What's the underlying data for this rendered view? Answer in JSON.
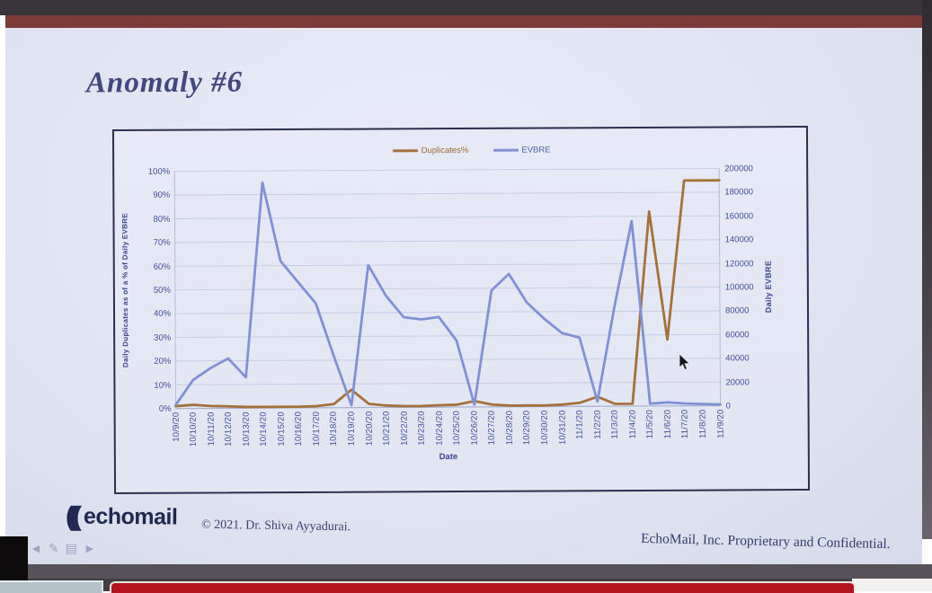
{
  "slide": {
    "title": "Anomaly #6",
    "copyright": "© 2021. Dr. Shiva Ayyadurai.",
    "confidential": "EchoMail, Inc. Proprietary and Confidential.",
    "logo": {
      "arcs": "(((",
      "text": "echomail"
    }
  },
  "icons": {
    "back": "◄",
    "pen": "✎",
    "slide_menu": "▤",
    "forward": "►",
    "mouse_cursor": "arrow-pointer"
  },
  "colors": {
    "accent_maroon": "#7c3b36",
    "banner_red": "#b3141f",
    "slide_background": "#e2e6f3",
    "title_navy": "#42477c",
    "duplicates_line": "#a5703a",
    "evbre_line": "#8191d6"
  },
  "chart_data": {
    "type": "line",
    "title": "",
    "xlabel": "Date",
    "ylabel_left": "Daily Duplicates as of a % of Daily EVBRE",
    "ylabel_right": "Daily EVBRE",
    "legend_position": "top-center",
    "grid": true,
    "x": [
      "10/9/20",
      "10/10/20",
      "10/11/20",
      "10/12/20",
      "10/13/20",
      "10/14/20",
      "10/15/20",
      "10/16/20",
      "10/17/20",
      "10/18/20",
      "10/19/20",
      "10/20/20",
      "10/21/20",
      "10/22/20",
      "10/23/20",
      "10/24/20",
      "10/25/20",
      "10/26/20",
      "10/27/20",
      "10/28/20",
      "10/29/20",
      "10/30/20",
      "10/31/20",
      "11/1/20",
      "11/2/20",
      "11/3/20",
      "11/4/20",
      "11/5/20",
      "11/6/20",
      "11/7/20",
      "11/8/20",
      "11/9/20"
    ],
    "left_axis": {
      "min": 0,
      "max": 100,
      "ticks_top_to_bottom": [
        "100%",
        "90%",
        "80%",
        "70%",
        "60%",
        "50%",
        "40%",
        "30%",
        "20%",
        "10%",
        "0%"
      ]
    },
    "right_axis": {
      "min": 0,
      "max": 200000,
      "ticks_top_to_bottom": [
        "200000",
        "180000",
        "160000",
        "140000",
        "120000",
        "100000",
        "80000",
        "60000",
        "40000",
        "20000",
        "0"
      ]
    },
    "series": [
      {
        "name": "Duplicates%",
        "axis": "left",
        "color": "#a5703a",
        "values": [
          1,
          1.5,
          1,
          0.8,
          0.5,
          0.5,
          0.5,
          0.5,
          0.7,
          1.5,
          7.5,
          1.5,
          0.8,
          0.5,
          0.5,
          0.8,
          1,
          2.5,
          1,
          0.5,
          0.5,
          0.5,
          0.8,
          1.5,
          4,
          1,
          1,
          82,
          28,
          95,
          95,
          95
        ]
      },
      {
        "name": "EVBRE",
        "axis": "right",
        "color": "#8191d6",
        "values": [
          3000,
          24000,
          34000,
          42000,
          26000,
          190000,
          124000,
          106000,
          88000,
          44000,
          2000,
          120000,
          94000,
          76000,
          74000,
          76000,
          56000,
          2000,
          98000,
          112000,
          88000,
          74000,
          62000,
          58000,
          4000,
          84000,
          156000,
          2000,
          3000,
          2000,
          1500,
          1000
        ]
      }
    ]
  }
}
